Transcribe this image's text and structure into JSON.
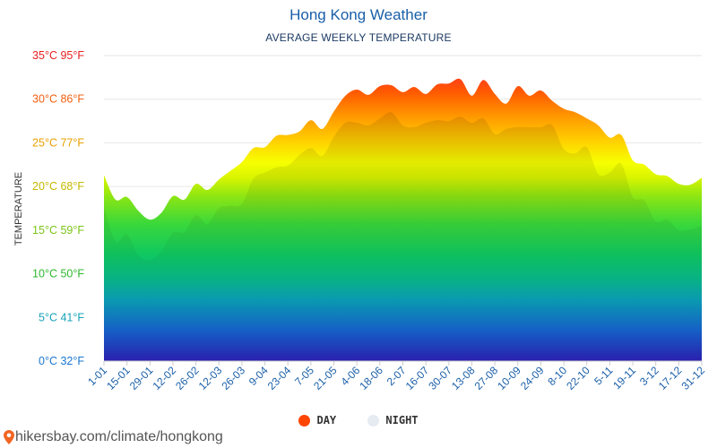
{
  "title": "Hong Kong Weather",
  "subtitle": "AVERAGE WEEKLY TEMPERATURE",
  "source": "hikersbay.com/climate/hongkong",
  "legend": [
    {
      "label": "DAY",
      "color": "#ff4500"
    },
    {
      "label": "NIGHT",
      "color": "#e6ebf2"
    }
  ],
  "chart_data": {
    "type": "area",
    "ylabel": "TEMPERATURE",
    "ylim": [
      0,
      35
    ],
    "yticks": [
      {
        "value": 0,
        "label": "0°C 32°F",
        "color": "#1976d2"
      },
      {
        "value": 5,
        "label": "5°C 41°F",
        "color": "#17a2b8"
      },
      {
        "value": 10,
        "label": "10°C 50°F",
        "color": "#2eb82e"
      },
      {
        "value": 15,
        "label": "15°C 59°F",
        "color": "#7cc417"
      },
      {
        "value": 20,
        "label": "20°C 68°F",
        "color": "#c5b800"
      },
      {
        "value": 25,
        "label": "25°C 77°F",
        "color": "#e8a000"
      },
      {
        "value": 30,
        "label": "30°C 86°F",
        "color": "#f06010"
      },
      {
        "value": 35,
        "label": "35°C 95°F",
        "color": "#e82020"
      }
    ],
    "xticks": [
      "1-01",
      "15-01",
      "29-01",
      "12-02",
      "26-02",
      "12-03",
      "26-03",
      "9-04",
      "23-04",
      "7-05",
      "21-05",
      "4-06",
      "18-06",
      "2-07",
      "16-07",
      "30-07",
      "13-08",
      "27-08",
      "10-09",
      "24-09",
      "8-10",
      "22-10",
      "5-11",
      "19-11",
      "3-12",
      "17-12",
      "31-12"
    ],
    "grid": true,
    "legend_position": "bottom",
    "series": [
      {
        "name": "DAY",
        "values": [
          21.3,
          18.5,
          18.8,
          17.2,
          16.2,
          17.0,
          18.9,
          18.5,
          20.3,
          19.6,
          20.8,
          21.8,
          22.8,
          24.4,
          24.5,
          25.8,
          25.9,
          26.3,
          27.6,
          26.6,
          28.6,
          30.4,
          31.1,
          30.5,
          31.5,
          31.6,
          30.8,
          31.4,
          30.6,
          31.7,
          31.8,
          32.3,
          30.4,
          32.2,
          30.6,
          29.5,
          31.5,
          30.4,
          31.0,
          29.8,
          28.9,
          28.5,
          27.8,
          27.0,
          25.6,
          25.9,
          23.0,
          22.5,
          21.4,
          21.2,
          20.3,
          20.2,
          21.0
        ]
      },
      {
        "name": "NIGHT",
        "values": [
          17.6,
          13.7,
          14.5,
          12.1,
          11.6,
          12.6,
          14.7,
          14.8,
          16.7,
          15.7,
          17.5,
          17.8,
          18.0,
          20.9,
          21.6,
          22.2,
          22.4,
          23.6,
          24.4,
          23.5,
          25.7,
          27.3,
          27.3,
          27.0,
          27.8,
          28.5,
          27.0,
          26.8,
          27.3,
          27.6,
          27.5,
          28.0,
          27.3,
          27.8,
          26.0,
          26.6,
          26.8,
          26.8,
          26.8,
          27.0,
          24.3,
          23.8,
          24.5,
          21.4,
          21.6,
          22.6,
          18.8,
          18.4,
          16.0,
          16.2,
          15.0,
          15.1,
          15.5
        ]
      }
    ]
  }
}
